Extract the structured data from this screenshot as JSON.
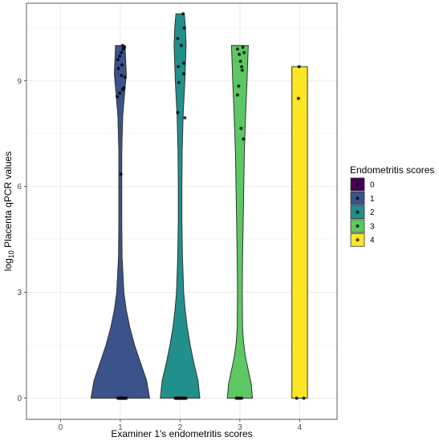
{
  "chart_data": {
    "type": "violin",
    "xlabel": "Examiner 1's endometritis scores",
    "ylabel_main": "log",
    "ylabel_sub": "10",
    "ylabel_rest": " Placenta qPCR values",
    "categories": [
      "0",
      "1",
      "2",
      "3",
      "4"
    ],
    "ylim": [
      -0.6,
      11.2
    ],
    "yticks": [
      0,
      3,
      6,
      9
    ],
    "ytick_labels": [
      "0",
      "3",
      "6",
      "9"
    ],
    "grid": true,
    "legend": {
      "title": "Endometritis scores",
      "placement": "right",
      "entries": [
        "0",
        "1",
        "2",
        "3",
        "4"
      ]
    },
    "colors": {
      "0": "#440154",
      "1": "#3b528b",
      "2": "#21908c",
      "3": "#5dc863",
      "4": "#fde725"
    },
    "violins": [
      {
        "category": "1",
        "color": "#3b528b",
        "profile": [
          [
            0,
            0.49
          ],
          [
            0.5,
            0.44
          ],
          [
            1,
            0.34
          ],
          [
            1.5,
            0.24
          ],
          [
            2,
            0.16
          ],
          [
            2.5,
            0.1
          ],
          [
            3,
            0.06
          ],
          [
            4,
            0.03
          ],
          [
            5,
            0.025
          ],
          [
            6,
            0.025
          ],
          [
            7,
            0.025
          ],
          [
            8,
            0.04
          ],
          [
            8.6,
            0.07
          ],
          [
            9.2,
            0.1
          ],
          [
            9.6,
            0.09
          ],
          [
            10,
            0.08
          ]
        ]
      },
      {
        "category": "2",
        "color": "#21908c",
        "profile": [
          [
            0,
            0.33
          ],
          [
            0.5,
            0.3
          ],
          [
            1,
            0.23
          ],
          [
            1.5,
            0.17
          ],
          [
            2,
            0.12
          ],
          [
            2.5,
            0.085
          ],
          [
            3,
            0.06
          ],
          [
            4,
            0.04
          ],
          [
            5,
            0.03
          ],
          [
            6,
            0.03
          ],
          [
            7,
            0.035
          ],
          [
            8,
            0.05
          ],
          [
            9,
            0.08
          ],
          [
            10,
            0.1
          ],
          [
            10.5,
            0.09
          ],
          [
            10.9,
            0.07
          ]
        ]
      },
      {
        "category": "3",
        "color": "#5dc863",
        "profile": [
          [
            0,
            0.21
          ],
          [
            0.4,
            0.19
          ],
          [
            0.8,
            0.14
          ],
          [
            1.2,
            0.09
          ],
          [
            1.6,
            0.06
          ],
          [
            2,
            0.045
          ],
          [
            3,
            0.04
          ],
          [
            4,
            0.045
          ],
          [
            5,
            0.055
          ],
          [
            6,
            0.065
          ],
          [
            7,
            0.075
          ],
          [
            8,
            0.095
          ],
          [
            9,
            0.12
          ],
          [
            10,
            0.14
          ]
        ]
      },
      {
        "category": "4",
        "color": "#fde725",
        "profile": [
          [
            0,
            0.13
          ],
          [
            9.4,
            0.13
          ]
        ]
      }
    ],
    "points": [
      {
        "x": 0.96,
        "y": 0
      },
      {
        "x": 0.98,
        "y": 0
      },
      {
        "x": 1.0,
        "y": 0
      },
      {
        "x": 1.02,
        "y": 0
      },
      {
        "x": 1.04,
        "y": 0
      },
      {
        "x": 1.06,
        "y": 0
      },
      {
        "x": 1.08,
        "y": 0
      },
      {
        "x": 1.1,
        "y": 0
      },
      {
        "x": 0.95,
        "y": 8.55
      },
      {
        "x": 0.99,
        "y": 8.65
      },
      {
        "x": 1.04,
        "y": 8.75
      },
      {
        "x": 1.06,
        "y": 8.8
      },
      {
        "x": 1.08,
        "y": 9.1
      },
      {
        "x": 1.02,
        "y": 9.15
      },
      {
        "x": 0.97,
        "y": 9.35
      },
      {
        "x": 1.03,
        "y": 9.45
      },
      {
        "x": 0.96,
        "y": 9.6
      },
      {
        "x": 0.99,
        "y": 9.7
      },
      {
        "x": 1.02,
        "y": 9.8
      },
      {
        "x": 1.05,
        "y": 9.9
      },
      {
        "x": 1.07,
        "y": 9.95
      },
      {
        "x": 1.04,
        "y": 10.0
      },
      {
        "x": 1.01,
        "y": 6.35
      },
      {
        "x": 1.92,
        "y": 0
      },
      {
        "x": 1.94,
        "y": 0
      },
      {
        "x": 1.96,
        "y": 0
      },
      {
        "x": 1.98,
        "y": 0
      },
      {
        "x": 2.0,
        "y": 0
      },
      {
        "x": 2.02,
        "y": 0
      },
      {
        "x": 2.04,
        "y": 0
      },
      {
        "x": 2.06,
        "y": 0
      },
      {
        "x": 2.08,
        "y": 0
      },
      {
        "x": 2.1,
        "y": 0
      },
      {
        "x": 1.96,
        "y": 8.1
      },
      {
        "x": 2.08,
        "y": 7.95
      },
      {
        "x": 1.98,
        "y": 8.95
      },
      {
        "x": 2.06,
        "y": 9.2
      },
      {
        "x": 1.97,
        "y": 9.4
      },
      {
        "x": 2.06,
        "y": 9.5
      },
      {
        "x": 2.02,
        "y": 10.0
      },
      {
        "x": 1.96,
        "y": 10.2
      },
      {
        "x": 2.07,
        "y": 10.5
      },
      {
        "x": 2.05,
        "y": 10.9
      },
      {
        "x": 2.94,
        "y": 0
      },
      {
        "x": 2.97,
        "y": 0
      },
      {
        "x": 3.0,
        "y": 0
      },
      {
        "x": 3.03,
        "y": 0
      },
      {
        "x": 3.06,
        "y": 7.35
      },
      {
        "x": 3.02,
        "y": 7.65
      },
      {
        "x": 2.96,
        "y": 8.6
      },
      {
        "x": 2.98,
        "y": 8.85
      },
      {
        "x": 3.04,
        "y": 9.3
      },
      {
        "x": 3.03,
        "y": 9.4
      },
      {
        "x": 3.01,
        "y": 9.55
      },
      {
        "x": 2.99,
        "y": 9.75
      },
      {
        "x": 3.07,
        "y": 9.8
      },
      {
        "x": 2.96,
        "y": 9.9
      },
      {
        "x": 3.05,
        "y": 9.95
      },
      {
        "x": 3.95,
        "y": 0
      },
      {
        "x": 4.07,
        "y": 0
      },
      {
        "x": 3.98,
        "y": 8.5
      },
      {
        "x": 3.99,
        "y": 9.4
      }
    ]
  }
}
